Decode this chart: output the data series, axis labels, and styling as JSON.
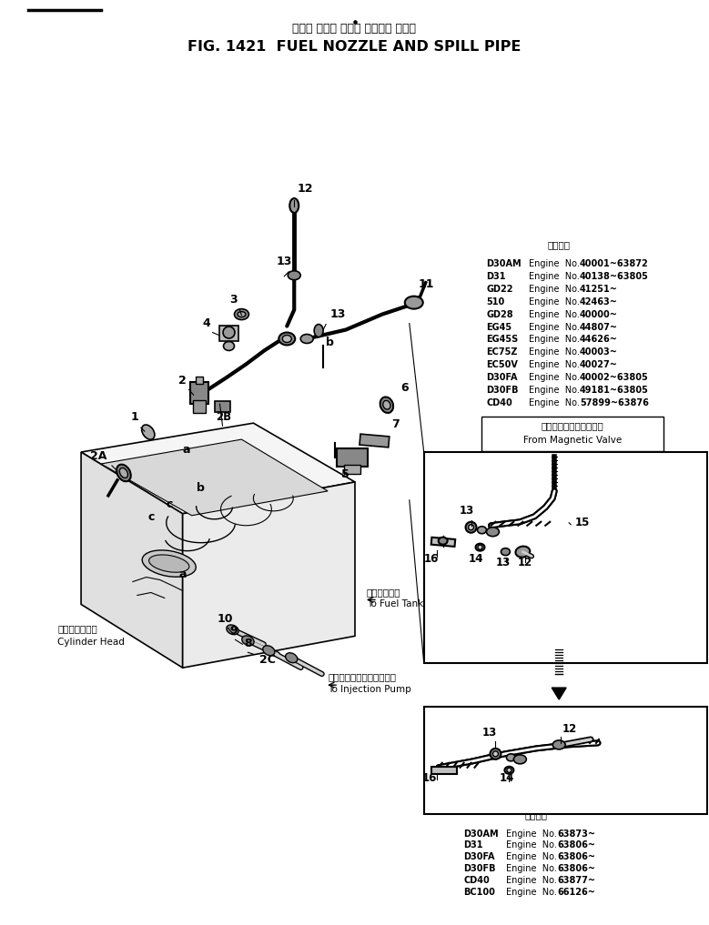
{
  "title_jp": "フェル ノズル および スピルー パイプ",
  "title_en": "FIG. 1421  FUEL NOZZLE AND SPILL PIPE",
  "bg_color": "#ffffff",
  "lc": "#000000",
  "tc": "#000000",
  "engine_table_1_header": "適用号機",
  "engine_table_1": [
    [
      "D30AM",
      "Engine  No.",
      "40001~63872"
    ],
    [
      "D31",
      "Engine  No.",
      "40138~63805"
    ],
    [
      "GD22",
      "Engine  No.",
      "41251~"
    ],
    [
      "510",
      "Engine  No.",
      "42463~"
    ],
    [
      "GD28",
      "Engine  No.",
      "40000~"
    ],
    [
      "EG45",
      "Engine  No.",
      "44807~"
    ],
    [
      "EG45S",
      "Engine  No.",
      "44626~"
    ],
    [
      "EC75Z",
      "Engine  No.",
      "40003~"
    ],
    [
      "EC50V",
      "Engine  No.",
      "40027~"
    ],
    [
      "D30FA",
      "Engine  No.",
      "40002~63805"
    ],
    [
      "D30FB",
      "Engine  No.",
      "49181~63805"
    ],
    [
      "CD40",
      "Engine  No.",
      "57899~63876"
    ]
  ],
  "engine_table_2_header": "適用号機",
  "engine_table_2": [
    [
      "D30AM",
      "Engine  No.",
      "63873~"
    ],
    [
      "D31",
      "Engine  No.",
      "63806~"
    ],
    [
      "D30FA",
      "Engine  No.",
      "63806~"
    ],
    [
      "D30FB",
      "Engine  No.",
      "63806~"
    ],
    [
      "CD40",
      "Engine  No.",
      "63877~"
    ],
    [
      "BC100",
      "Engine  No.",
      "66126~"
    ]
  ],
  "mag_valve_jp": "マグネチックバルブから",
  "mag_valve_en": "From Magnetic Valve",
  "fuel_tank_jp": "燃料タンクへ",
  "fuel_tank_en": "To Fuel Tank",
  "inj_pump_jp": "インジェクションポンプへ",
  "inj_pump_en": "To Injection Pump",
  "cyl_head_jp": "シリンダヘッド",
  "cyl_head_en": "Cylinder Head"
}
